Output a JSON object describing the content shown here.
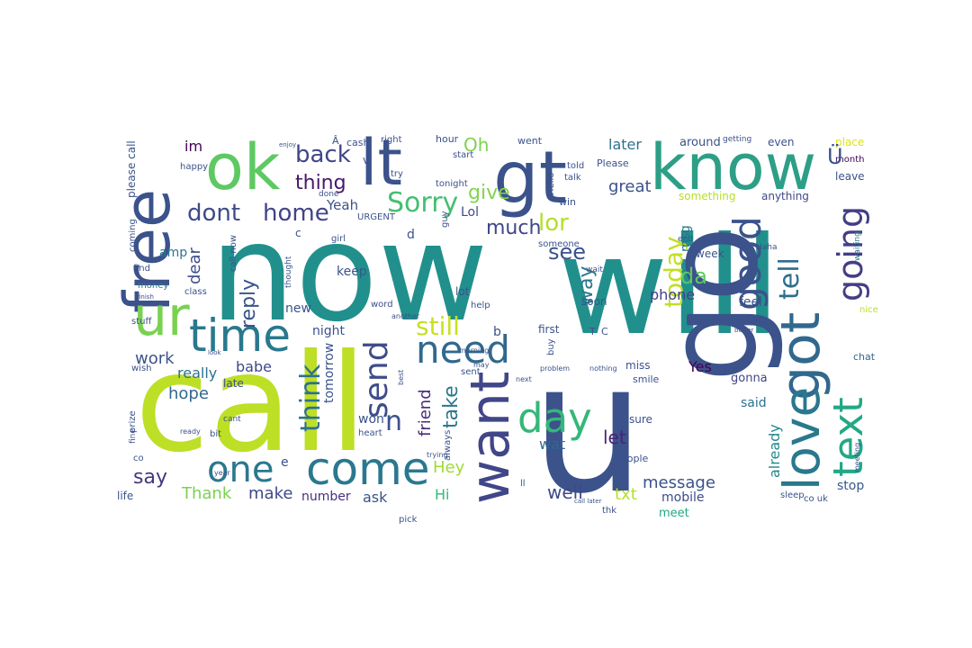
{
  "words": [
    {
      "text": "now",
      "color": "#21908d"
    },
    {
      "text": "will",
      "color": "#21908d"
    },
    {
      "text": "call",
      "color": "#bddf26"
    },
    {
      "text": "u",
      "color": "#3b528b"
    },
    {
      "text": "go",
      "color": "#3b528b"
    },
    {
      "text": "lt",
      "color": "#3b528b"
    },
    {
      "text": "gt",
      "color": "#3b528b"
    },
    {
      "text": "ok",
      "color": "#5ec962"
    },
    {
      "text": "know",
      "color": "#2c9f86"
    },
    {
      "text": "free",
      "color": "#3b528b"
    },
    {
      "text": "ur",
      "color": "#7ad151"
    },
    {
      "text": "time",
      "color": "#2a788e"
    },
    {
      "text": "got",
      "color": "#31688e"
    },
    {
      "text": "come",
      "color": "#2a788e"
    },
    {
      "text": "want",
      "color": "#404688"
    },
    {
      "text": "love",
      "color": "#2a788e"
    },
    {
      "text": "text",
      "color": "#22a884"
    },
    {
      "text": "good",
      "color": "#3b528b"
    },
    {
      "text": "going",
      "color": "#433e85"
    },
    {
      "text": "need",
      "color": "#31688e"
    },
    {
      "text": "day",
      "color": "#35b779"
    },
    {
      "text": "one",
      "color": "#2a788e"
    },
    {
      "text": "send",
      "color": "#3e4c8a"
    },
    {
      "text": "Sorry",
      "color": "#44bf70"
    },
    {
      "text": "home",
      "color": "#414487"
    },
    {
      "text": "dont",
      "color": "#3e4a89"
    },
    {
      "text": "still",
      "color": "#c8e020"
    },
    {
      "text": "think",
      "color": "#2d708e"
    },
    {
      "text": "back",
      "color": "#404588"
    },
    {
      "text": "thing",
      "color": "#48186a"
    },
    {
      "text": "tell",
      "color": "#2e6e8e"
    },
    {
      "text": "today",
      "color": "#c2df23"
    },
    {
      "text": "lor",
      "color": "#b5de2b"
    },
    {
      "text": "da",
      "color": "#5ec962"
    },
    {
      "text": "see",
      "color": "#3b528b"
    },
    {
      "text": "give",
      "color": "#84d44b"
    },
    {
      "text": "much",
      "color": "#3f4788"
    },
    {
      "text": "Oh",
      "color": "#7fd34e"
    },
    {
      "text": "great",
      "color": "#3b528b"
    },
    {
      "text": "later",
      "color": "#2c728e"
    },
    {
      "text": "way",
      "color": "#29798e"
    },
    {
      "text": "reply",
      "color": "#3a538b"
    },
    {
      "text": "dear",
      "color": "#3d4d8a"
    },
    {
      "text": "say",
      "color": "#453781"
    },
    {
      "text": "Thank",
      "color": "#7ad151"
    },
    {
      "text": "make",
      "color": "#3e4989"
    },
    {
      "text": "take",
      "color": "#2a788e"
    },
    {
      "text": "friend",
      "color": "#472d7b"
    },
    {
      "text": "Hey",
      "color": "#a0da39"
    },
    {
      "text": "well",
      "color": "#3e4989"
    },
    {
      "text": "let",
      "color": "#482475"
    },
    {
      "text": "wat",
      "color": "#31688e"
    },
    {
      "text": "message",
      "color": "#3b528b"
    },
    {
      "text": "txt",
      "color": "#b5de2b"
    },
    {
      "text": "phone",
      "color": "#424086"
    },
    {
      "text": "msg",
      "color": "#2d708e"
    },
    {
      "text": "already",
      "color": "#23898e"
    },
    {
      "text": "stop",
      "color": "#38588c"
    },
    {
      "text": "mobile",
      "color": "#3e4a89"
    },
    {
      "text": "meet",
      "color": "#22a884"
    },
    {
      "text": "Yes",
      "color": "#440154"
    },
    {
      "text": "work",
      "color": "#3b528b"
    },
    {
      "text": "hope",
      "color": "#31688e"
    },
    {
      "text": "babe",
      "color": "#3f4889"
    },
    {
      "text": "really",
      "color": "#2c728e"
    },
    {
      "text": "tomorrow",
      "color": "#3b528b"
    },
    {
      "text": "night",
      "color": "#3a538b"
    },
    {
      "text": "Yeah",
      "color": "#3b528b"
    },
    {
      "text": "Lol",
      "color": "#3e4c8a"
    },
    {
      "text": "im",
      "color": "#440154"
    },
    {
      "text": "amp",
      "color": "#2b758e"
    },
    {
      "text": "keep",
      "color": "#3a548c"
    },
    {
      "text": "new",
      "color": "#3b528b"
    },
    {
      "text": "number",
      "color": "#46307e"
    },
    {
      "text": "ask",
      "color": "#3b528b"
    },
    {
      "text": "Hi",
      "color": "#35b779"
    },
    {
      "text": "said",
      "color": "#2c728e"
    },
    {
      "text": "gonna",
      "color": "#414487"
    },
    {
      "text": "feel",
      "color": "#3b528b"
    },
    {
      "text": "around",
      "color": "#3b528b"
    },
    {
      "text": "something",
      "color": "#b8de29"
    },
    {
      "text": "anything",
      "color": "#3e4989"
    },
    {
      "text": "even",
      "color": "#3b528b"
    },
    {
      "text": "leave",
      "color": "#3b528b"
    },
    {
      "text": "place",
      "color": "#dde318"
    },
    {
      "text": "month",
      "color": "#440154"
    },
    {
      "text": "waiting",
      "color": "#2a788e"
    },
    {
      "text": "nice",
      "color": "#b5de2b"
    },
    {
      "text": "chat",
      "color": "#31688e"
    },
    {
      "text": "week",
      "color": "#3b528b"
    },
    {
      "text": "soon",
      "color": "#3b528b"
    },
    {
      "text": "lunch",
      "color": "#3b528b"
    },
    {
      "text": "miss",
      "color": "#3b528b"
    },
    {
      "text": "smile",
      "color": "#3b528b"
    },
    {
      "text": "sure",
      "color": "#3b528b"
    },
    {
      "text": "people",
      "color": "#3b528b"
    },
    {
      "text": "won",
      "color": "#3b528b"
    },
    {
      "text": "late",
      "color": "#3b528b"
    },
    {
      "text": "life",
      "color": "#3b528b"
    },
    {
      "text": "sent",
      "color": "#3b528b"
    },
    {
      "text": "first",
      "color": "#3b528b"
    },
    {
      "text": "buy",
      "color": "#3b528b"
    },
    {
      "text": "lot",
      "color": "#3b528b"
    },
    {
      "text": "help",
      "color": "#3b528b"
    },
    {
      "text": "word",
      "color": "#3b528b"
    },
    {
      "text": "thought",
      "color": "#3b528b"
    },
    {
      "text": "girl",
      "color": "#3b528b"
    },
    {
      "text": "guy",
      "color": "#3b528b"
    },
    {
      "text": "find",
      "color": "#3b528b"
    },
    {
      "text": "money",
      "color": "#2a788e"
    },
    {
      "text": "class",
      "color": "#3b528b"
    },
    {
      "text": "stuff",
      "color": "#3b528b"
    },
    {
      "text": "wish",
      "color": "#3b528b"
    },
    {
      "text": "happy",
      "color": "#3b528b"
    },
    {
      "text": "coming",
      "color": "#3b528b"
    },
    {
      "text": "please call",
      "color": "#3b528b"
    },
    {
      "text": "call now",
      "color": "#3b528b"
    },
    {
      "text": "URGENT",
      "color": "#3b528b"
    },
    {
      "text": "cash",
      "color": "#3b528b"
    },
    {
      "text": "enjoy",
      "color": "#3b528b"
    },
    {
      "text": "right",
      "color": "#3b528b"
    },
    {
      "text": "hour",
      "color": "#3b528b"
    },
    {
      "text": "start",
      "color": "#3b528b"
    },
    {
      "text": "went",
      "color": "#3b528b"
    },
    {
      "text": "talk",
      "color": "#3b528b"
    },
    {
      "text": "getting",
      "color": "#3b528b"
    },
    {
      "text": "told",
      "color": "#3b528b"
    },
    {
      "text": "Please",
      "color": "#3b528b"
    },
    {
      "text": "tonight",
      "color": "#3b528b"
    },
    {
      "text": "try",
      "color": "#3b528b"
    },
    {
      "text": "done",
      "color": "#3b528b"
    },
    {
      "text": "Hello",
      "color": "#3b528b"
    },
    {
      "text": "win",
      "color": "#3b528b"
    },
    {
      "text": "someone",
      "color": "#3b528b"
    },
    {
      "text": "wait",
      "color": "#3b528b"
    },
    {
      "text": "end",
      "color": "#3b528b"
    },
    {
      "text": "better",
      "color": "#3b528b"
    },
    {
      "text": "Haha",
      "color": "#3b528b"
    },
    {
      "text": "sleep",
      "color": "#3b528b"
    },
    {
      "text": "co uk",
      "color": "#3b528b"
    },
    {
      "text": "call later",
      "color": "#3b528b"
    },
    {
      "text": "thk",
      "color": "#3b528b"
    },
    {
      "text": "pick",
      "color": "#3b528b"
    },
    {
      "text": "prize",
      "color": "#3b528b"
    },
    {
      "text": "fine",
      "color": "#3b528b"
    },
    {
      "text": "bit",
      "color": "#3b528b"
    },
    {
      "text": "ready",
      "color": "#3b528b"
    },
    {
      "text": "cant",
      "color": "#3b528b"
    },
    {
      "text": "year",
      "color": "#3b528b"
    },
    {
      "text": "heart",
      "color": "#3b528b"
    },
    {
      "text": "always",
      "color": "#3b528b"
    },
    {
      "text": "trying",
      "color": "#3b528b"
    },
    {
      "text": "best",
      "color": "#3b528b"
    },
    {
      "text": "next",
      "color": "#3b528b"
    },
    {
      "text": "problem",
      "color": "#3b528b"
    },
    {
      "text": "nothing",
      "color": "#3b528b"
    },
    {
      "text": "may",
      "color": "#3b528b"
    },
    {
      "text": "morning",
      "color": "#3b528b"
    },
    {
      "text": "another",
      "color": "#3b528b"
    },
    {
      "text": "meeting",
      "color": "#3b528b"
    },
    {
      "text": "ll",
      "color": "#3b528b"
    },
    {
      "text": "b",
      "color": "#3b528b"
    },
    {
      "text": "d",
      "color": "#3b528b"
    },
    {
      "text": "c",
      "color": "#3b528b"
    },
    {
      "text": "e",
      "color": "#3b528b"
    },
    {
      "text": "n",
      "color": "#3b528b"
    },
    {
      "text": "v",
      "color": "#3b528b"
    },
    {
      "text": "T",
      "color": "#3b528b"
    },
    {
      "text": "C",
      "color": "#3b528b"
    },
    {
      "text": "co",
      "color": "#3b528b"
    },
    {
      "text": "finish",
      "color": "#3b528b"
    },
    {
      "text": "look",
      "color": "#3b528b"
    },
    {
      "text": "Ü",
      "color": "#3b528b"
    },
    {
      "text": "Â",
      "color": "#3b528b"
    }
  ]
}
